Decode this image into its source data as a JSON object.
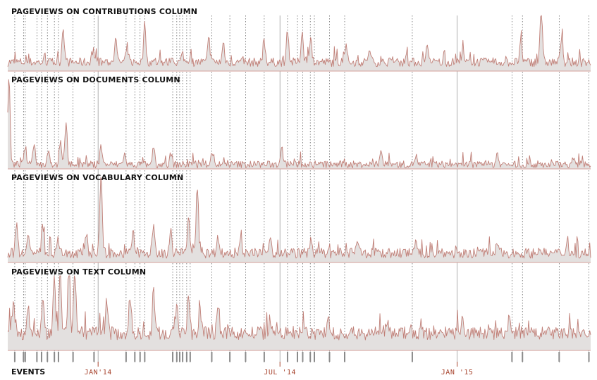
{
  "chart_data": {
    "type": "area",
    "panels": [
      {
        "title": "PAGEVIEWS ON CONTRIBUTIONS COLUMN",
        "peaks": [
          [
            0.095,
            0.65
          ],
          [
            0.145,
            0.18
          ],
          [
            0.185,
            0.4
          ],
          [
            0.205,
            0.28
          ],
          [
            0.235,
            0.6
          ],
          [
            0.3,
            0.15
          ],
          [
            0.345,
            0.42
          ],
          [
            0.37,
            0.35
          ],
          [
            0.44,
            0.38
          ],
          [
            0.48,
            0.6
          ],
          [
            0.505,
            0.55
          ],
          [
            0.52,
            0.4
          ],
          [
            0.58,
            0.3
          ],
          [
            0.62,
            0.22
          ],
          [
            0.72,
            0.25
          ],
          [
            0.78,
            0.2
          ],
          [
            0.88,
            0.35
          ],
          [
            0.915,
            1.0
          ],
          [
            0.95,
            0.45
          ]
        ],
        "base": 0.08,
        "noise": 0.16
      },
      {
        "title": "PAGEVIEWS ON DOCUMENTS COLUMN",
        "peaks": [
          [
            0.002,
            1.0
          ],
          [
            0.03,
            0.2
          ],
          [
            0.045,
            0.25
          ],
          [
            0.07,
            0.18
          ],
          [
            0.09,
            0.25
          ],
          [
            0.1,
            0.48
          ],
          [
            0.16,
            0.2
          ],
          [
            0.2,
            0.12
          ],
          [
            0.25,
            0.15
          ],
          [
            0.28,
            0.12
          ],
          [
            0.35,
            0.14
          ],
          [
            0.47,
            0.22
          ],
          [
            0.64,
            0.15
          ],
          [
            0.7,
            0.1
          ],
          [
            0.84,
            0.1
          ],
          [
            0.97,
            0.05
          ]
        ],
        "base": 0.01,
        "noise": 0.08
      },
      {
        "title": "PAGEVIEWS ON VOCABULARY COLUMN",
        "peaks": [
          [
            0.015,
            0.35
          ],
          [
            0.035,
            0.28
          ],
          [
            0.06,
            0.32
          ],
          [
            0.085,
            0.16
          ],
          [
            0.135,
            0.2
          ],
          [
            0.16,
            1.0
          ],
          [
            0.215,
            0.25
          ],
          [
            0.25,
            0.3
          ],
          [
            0.28,
            0.25
          ],
          [
            0.31,
            0.42
          ],
          [
            0.325,
            0.8
          ],
          [
            0.36,
            0.22
          ],
          [
            0.4,
            0.25
          ],
          [
            0.45,
            0.22
          ],
          [
            0.52,
            0.18
          ],
          [
            0.6,
            0.12
          ],
          [
            0.7,
            0.12
          ],
          [
            0.84,
            0.12
          ],
          [
            0.96,
            0.18
          ]
        ],
        "base": 0.05,
        "noise": 0.12
      },
      {
        "title": "PAGEVIEWS ON TEXT COLUMN",
        "peaks": [
          [
            0.01,
            0.5
          ],
          [
            0.035,
            0.42
          ],
          [
            0.06,
            0.5
          ],
          [
            0.08,
            0.75
          ],
          [
            0.09,
            0.8
          ],
          [
            0.105,
            1.0
          ],
          [
            0.115,
            0.85
          ],
          [
            0.17,
            0.45
          ],
          [
            0.21,
            0.48
          ],
          [
            0.25,
            0.55
          ],
          [
            0.29,
            0.4
          ],
          [
            0.31,
            0.55
          ],
          [
            0.33,
            0.35
          ],
          [
            0.36,
            0.25
          ],
          [
            0.45,
            0.22
          ],
          [
            0.55,
            0.18
          ],
          [
            0.65,
            0.15
          ],
          [
            0.78,
            0.25
          ],
          [
            0.86,
            0.18
          ]
        ],
        "base": 0.14,
        "noise": 0.18
      }
    ],
    "x_ticks": [
      "JAN'14",
      "JUL '14",
      "JAN '15"
    ],
    "events_label": "EVENTS",
    "n_points": 640,
    "events": [
      0.012,
      0.027,
      0.03,
      0.05,
      0.058,
      0.068,
      0.08,
      0.087,
      0.112,
      0.148,
      0.203,
      0.218,
      0.227,
      0.235,
      0.283,
      0.29,
      0.295,
      0.3,
      0.307,
      0.313,
      0.35,
      0.381,
      0.408,
      0.44,
      0.48,
      0.497,
      0.506,
      0.519,
      0.526,
      0.552,
      0.578,
      0.694,
      0.865,
      0.883,
      0.946,
      0.997
    ],
    "major_ticks": [
      0.155,
      0.467,
      0.771
    ],
    "colors": {
      "fill": "#e3e0df",
      "line": "#c07f77",
      "guide": "#555555",
      "axis_text": "#a8452f",
      "baseline": "#d4a19b"
    }
  }
}
